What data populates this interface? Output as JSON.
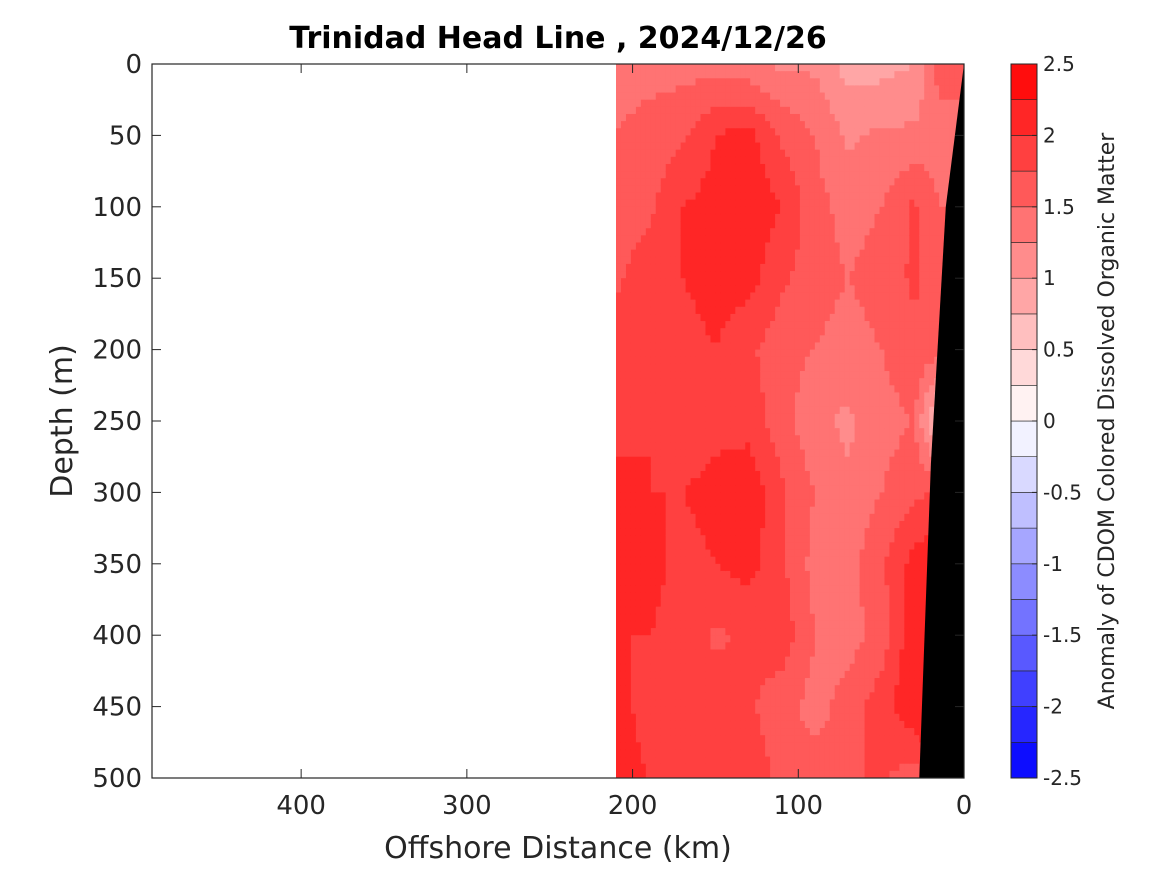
{
  "chart_data": {
    "type": "heatmap",
    "title": "Trinidad Head Line , 2024/12/26",
    "xlabel": "Offshore Distance (km)",
    "ylabel": "Depth (m)",
    "xlim": [
      490,
      0
    ],
    "ylim": [
      0,
      500
    ],
    "x_ticks": [
      400,
      300,
      200,
      100,
      0
    ],
    "y_ticks": [
      0,
      50,
      100,
      150,
      200,
      250,
      300,
      350,
      400,
      450,
      500
    ],
    "colorbar": {
      "label": "Anomaly of CDOM Colored Dissolved Organic Matter",
      "range": [
        -2.5,
        2.5
      ],
      "ticks": [
        -2.5,
        -2,
        -1.5,
        -1,
        -0.5,
        0,
        0.5,
        1,
        1.5,
        2,
        2.5
      ],
      "levels": [
        -2.5,
        -2.25,
        -2,
        -1.75,
        -1.5,
        -1.25,
        -1,
        -0.75,
        -0.5,
        -0.25,
        0,
        0.25,
        0.5,
        0.75,
        1,
        1.25,
        1.5,
        1.75,
        2,
        2.25,
        2.5
      ],
      "colormap": "blue-white-red"
    },
    "data_extent": {
      "x_range": [
        210,
        0
      ],
      "depth_range": [
        0,
        500
      ]
    },
    "bathymetry_color": "#000000",
    "anomaly_grid": {
      "x": [
        210,
        190,
        170,
        150,
        130,
        110,
        90,
        70,
        50,
        30,
        15
      ],
      "depth": [
        0,
        50,
        100,
        150,
        200,
        250,
        300,
        350,
        400,
        450,
        500
      ],
      "values": [
        [
          1.4,
          1.4,
          1.4,
          1.4,
          1.3,
          1.2,
          1.2,
          0.9,
          0.9,
          1.0,
          1.6
        ],
        [
          1.5,
          1.6,
          1.7,
          2.0,
          2.1,
          1.7,
          1.5,
          1.2,
          1.3,
          1.3,
          1.4
        ],
        [
          1.6,
          1.7,
          2.0,
          2.1,
          2.2,
          2.0,
          1.6,
          1.4,
          1.5,
          1.8,
          1.5
        ],
        [
          1.7,
          1.9,
          2.0,
          2.1,
          2.1,
          1.8,
          1.6,
          1.5,
          1.6,
          1.8,
          1.6
        ],
        [
          1.9,
          1.8,
          1.9,
          2.0,
          1.8,
          1.6,
          1.5,
          1.4,
          1.5,
          1.7,
          1.6
        ],
        [
          1.9,
          2.0,
          1.8,
          1.9,
          1.9,
          1.6,
          1.3,
          1.2,
          1.4,
          1.5,
          0.5
        ],
        [
          2.1,
          2.0,
          2.0,
          2.1,
          2.2,
          1.8,
          1.5,
          1.3,
          1.5,
          1.7,
          1.8
        ],
        [
          2.0,
          2.1,
          1.9,
          2.0,
          2.1,
          1.8,
          1.4,
          1.4,
          1.7,
          2.1,
          2.2
        ],
        [
          2.0,
          2.0,
          1.9,
          1.7,
          1.8,
          1.9,
          1.5,
          1.4,
          1.6,
          2.2,
          2.3
        ],
        [
          2.1,
          1.9,
          2.0,
          1.9,
          1.8,
          1.6,
          1.4,
          1.6,
          1.9,
          2.2,
          2.3
        ],
        [
          2.1,
          2.0,
          1.9,
          2.0,
          1.9,
          1.7,
          1.6,
          1.7,
          1.8,
          1.6,
          2.2
        ]
      ]
    }
  }
}
